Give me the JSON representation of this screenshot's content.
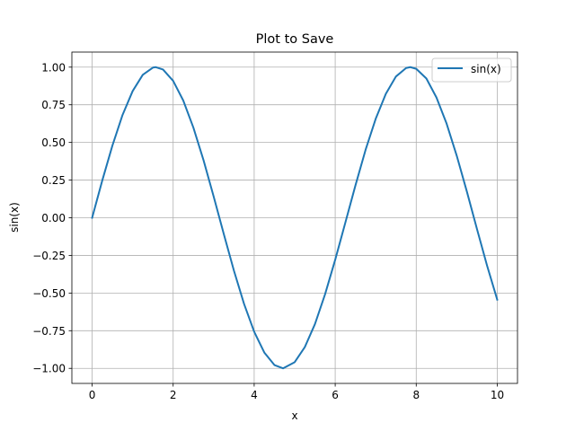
{
  "chart_data": {
    "type": "line",
    "title": "Plot to Save",
    "xlabel": "x",
    "ylabel": "sin(x)",
    "xlim": [
      -0.5,
      10.5
    ],
    "ylim": [
      -1.1,
      1.1
    ],
    "xticks": [
      0,
      2,
      4,
      6,
      8,
      10
    ],
    "xtick_labels": [
      "0",
      "2",
      "4",
      "6",
      "8",
      "10"
    ],
    "yticks": [
      -1.0,
      -0.75,
      -0.5,
      -0.25,
      0.0,
      0.25,
      0.5,
      0.75,
      1.0
    ],
    "ytick_labels": [
      "−1.00",
      "−0.75",
      "−0.50",
      "−0.25",
      "0.00",
      "0.25",
      "0.50",
      "0.75",
      "1.00"
    ],
    "grid": true,
    "legend_position": "top-right",
    "series": [
      {
        "name": "sin(x)",
        "color": "#1f77b4",
        "x": [
          0,
          0.25,
          0.5,
          0.75,
          1,
          1.25,
          1.5,
          1.571,
          1.75,
          2,
          2.25,
          2.5,
          2.75,
          3,
          3.25,
          3.5,
          3.75,
          4,
          4.25,
          4.5,
          4.712,
          5,
          5.25,
          5.5,
          5.75,
          6,
          6.25,
          6.5,
          6.75,
          7,
          7.25,
          7.5,
          7.75,
          7.854,
          8,
          8.25,
          8.5,
          8.75,
          9,
          9.25,
          9.5,
          9.75,
          10
        ],
        "y": [
          0.0,
          0.247,
          0.479,
          0.682,
          0.841,
          0.949,
          0.997,
          1.0,
          0.984,
          0.909,
          0.778,
          0.598,
          0.382,
          0.141,
          -0.108,
          -0.351,
          -0.572,
          -0.757,
          -0.895,
          -0.978,
          -1.0,
          -0.959,
          -0.859,
          -0.706,
          -0.508,
          -0.279,
          -0.033,
          0.215,
          0.451,
          0.657,
          0.823,
          0.938,
          0.994,
          1.0,
          0.989,
          0.925,
          0.798,
          0.625,
          0.412,
          0.174,
          -0.075,
          -0.319,
          -0.544
        ]
      }
    ]
  }
}
